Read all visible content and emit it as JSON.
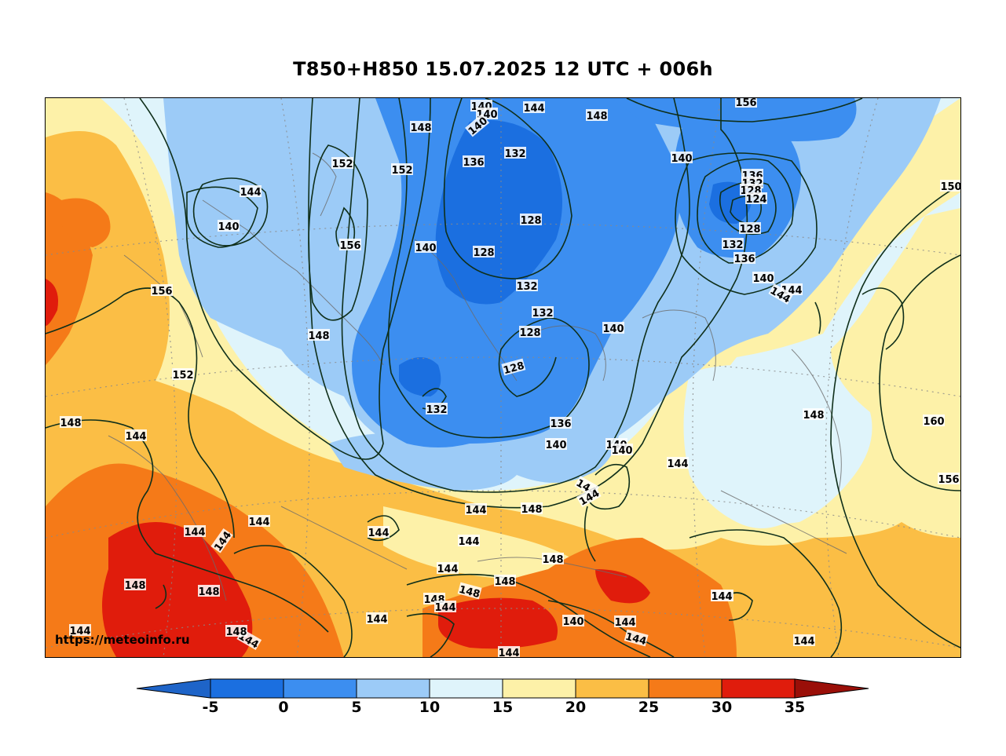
{
  "title": "T850+H850 15.07.2025 12 UTC + 006h",
  "watermark": "https://meteoinfo.ru",
  "colors": {
    "cold_min": "#1e64c8",
    "c_-5_0": "#1b6fe0",
    "c_0_5": "#3c8ef0",
    "c_5_10": "#9ccbf7",
    "c_10_15": "#dff4fb",
    "c_15_20": "#fdf1a8",
    "c_20_25": "#fbbe45",
    "c_25_30": "#f57a18",
    "c_30_35": "#e01c0c",
    "hot_max": "#9a0f08",
    "contour": "#0f2f1a"
  },
  "colorbar": {
    "ticks": [
      "-5",
      "0",
      "5",
      "10",
      "15",
      "20",
      "25",
      "30",
      "35"
    ]
  },
  "contour_labels": [
    {
      "text": "140"
    },
    {
      "text": "140"
    },
    {
      "text": "140"
    },
    {
      "text": "144"
    },
    {
      "text": "148"
    },
    {
      "text": "156"
    },
    {
      "text": "148"
    },
    {
      "text": "152"
    },
    {
      "text": "152"
    },
    {
      "text": "136"
    },
    {
      "text": "132"
    },
    {
      "text": "144"
    },
    {
      "text": "140"
    },
    {
      "text": "156"
    },
    {
      "text": "128"
    },
    {
      "text": "128"
    },
    {
      "text": "140"
    },
    {
      "text": "140"
    },
    {
      "text": "136"
    },
    {
      "text": "132"
    },
    {
      "text": "128"
    },
    {
      "text": "124"
    },
    {
      "text": "128"
    },
    {
      "text": "132"
    },
    {
      "text": "136"
    },
    {
      "text": "140"
    },
    {
      "text": "144"
    },
    {
      "text": "144"
    },
    {
      "text": "150"
    },
    {
      "text": "156"
    },
    {
      "text": "132"
    },
    {
      "text": "132"
    },
    {
      "text": "128"
    },
    {
      "text": "128"
    },
    {
      "text": "148"
    },
    {
      "text": "140"
    },
    {
      "text": "152"
    },
    {
      "text": "148"
    },
    {
      "text": "132"
    },
    {
      "text": "136"
    },
    {
      "text": "140"
    },
    {
      "text": "140"
    },
    {
      "text": "140"
    },
    {
      "text": "148"
    },
    {
      "text": "160"
    },
    {
      "text": "144"
    },
    {
      "text": "144"
    },
    {
      "text": "156"
    },
    {
      "text": "144"
    },
    {
      "text": "144"
    },
    {
      "text": "144"
    },
    {
      "text": "148"
    },
    {
      "text": "144"
    },
    {
      "text": "144"
    },
    {
      "text": "144"
    },
    {
      "text": "144"
    },
    {
      "text": "144"
    },
    {
      "text": "148"
    },
    {
      "text": "144"
    },
    {
      "text": "148"
    },
    {
      "text": "148"
    },
    {
      "text": "148"
    },
    {
      "text": "144"
    },
    {
      "text": "144"
    },
    {
      "text": "148"
    },
    {
      "text": "148"
    },
    {
      "text": "140"
    },
    {
      "text": "144"
    },
    {
      "text": "144"
    },
    {
      "text": "140"
    },
    {
      "text": "144"
    },
    {
      "text": "144"
    },
    {
      "text": "144"
    },
    {
      "text": "144"
    },
    {
      "text": "148"
    },
    {
      "text": "144"
    }
  ]
}
